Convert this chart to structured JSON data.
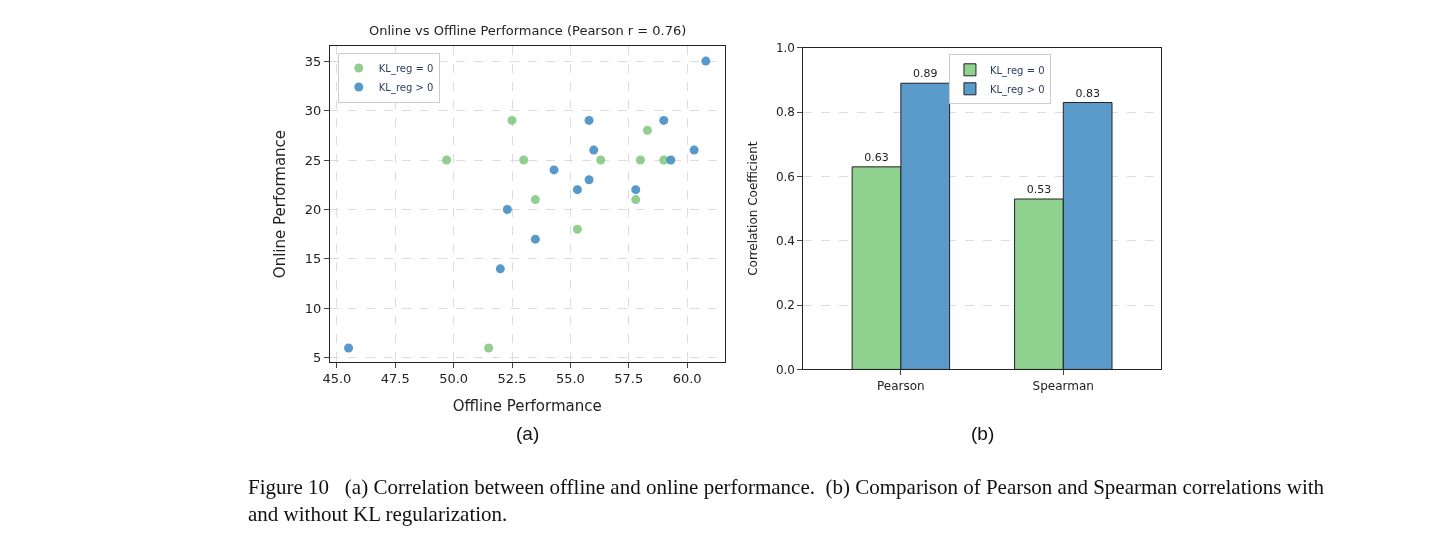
{
  "chart_data": [
    {
      "type": "scatter",
      "title": "Online vs Offline Performance (Pearson r = 0.76)",
      "xlabel": "Offline Performance",
      "ylabel": "Online Performance",
      "series": [
        {
          "name": "KL_reg = 0",
          "color": "#7cc77c",
          "x": [
            49.7,
            52.5,
            53.0,
            53.5,
            51.5,
            55.3,
            56.3,
            58.0,
            58.3,
            57.8,
            59.0
          ],
          "values": [
            25,
            29,
            25,
            21,
            6,
            18,
            25,
            25,
            28,
            21,
            25
          ]
        },
        {
          "name": "KL_reg > 0",
          "color": "#3a87c2",
          "x": [
            45.5,
            52.0,
            52.3,
            53.5,
            54.3,
            55.3,
            55.8,
            55.8,
            56.0,
            57.8,
            59.0,
            59.3,
            60.3,
            60.8
          ],
          "values": [
            6,
            14,
            20,
            17,
            24,
            22,
            29,
            23,
            26,
            22,
            29,
            25,
            26,
            35
          ]
        }
      ],
      "xlim": [
        44.7,
        61.6
      ],
      "xticks": [
        {
          "value": 45,
          "label": "45.0"
        },
        47.5,
        {
          "value": 50,
          "label": "50.0"
        },
        52.5,
        {
          "value": 55,
          "label": "55.0"
        },
        57.5,
        {
          "value": 60,
          "label": "60.0"
        }
      ],
      "ylim": [
        4.6,
        36.5
      ],
      "yticks": [
        5,
        10,
        15,
        20,
        25,
        30,
        35
      ],
      "grid": true,
      "legend": "top left",
      "marker": "circle",
      "annotations": [
        "(a)"
      ]
    },
    {
      "type": "bar",
      "ylabel": "Correlation Coefficient",
      "categories": [
        "Pearson",
        "Spearman"
      ],
      "series": [
        {
          "name": "KL_reg = 0",
          "color": "#8fd18f",
          "values": [
            0.63,
            0.53
          ]
        },
        {
          "name": "KL_reg > 0",
          "color": "#5a9bcc",
          "values": [
            0.89,
            0.83
          ]
        }
      ],
      "ylim": [
        0,
        1
      ],
      "yticks": [
        {
          "value": 0,
          "label": "0.0"
        },
        0.2,
        0.4,
        0.6,
        0.8,
        {
          "value": 1,
          "label": "1.0"
        }
      ],
      "grid": "y",
      "legend": "top",
      "data_labels": true,
      "annotations": [
        "(b)",
        "Figure 10   (a) Correlation between offline and online performance.  (b) Comparison of Pearson and Spearman correlations with and without KL regularization."
      ]
    }
  ]
}
